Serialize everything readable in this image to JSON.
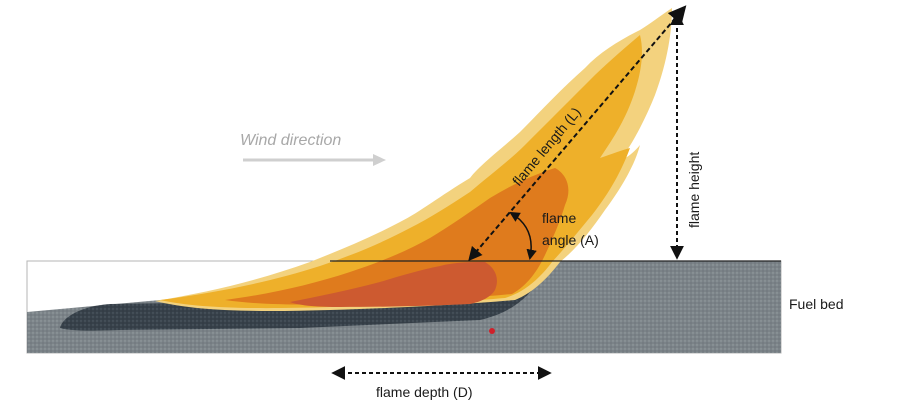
{
  "labels": {
    "wind_direction": "Wind direction",
    "flame_length": "flame length (L)",
    "flame_height": "flame height",
    "flame_angle_line1": "flame",
    "flame_angle_line2": "angle (A)",
    "fuel_bed": "Fuel bed",
    "flame_depth": "flame depth (D)"
  },
  "colors": {
    "fuel_bed": "#7d858a",
    "burnt_fuel": "#3b4650",
    "flame_outer": "#f5d98a",
    "flame_mid": "#eeb12a",
    "flame_inner": "#e07d1e",
    "flame_core": "#cf5a30",
    "wind_arrow": "#c8c8c8",
    "ignition_point": "#d0202a"
  }
}
